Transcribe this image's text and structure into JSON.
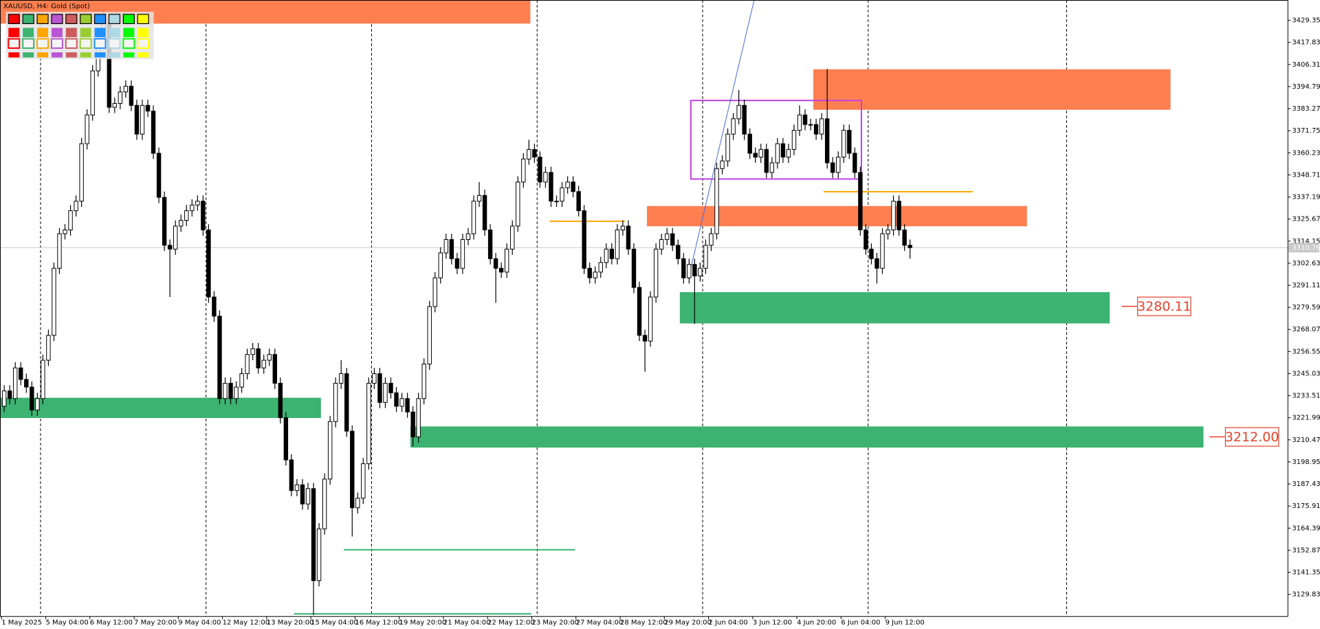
{
  "chart_data": {
    "type": "candlestick",
    "title": "XAUUSD, H4:  Gold (Spot)",
    "up_color": "#ffffff",
    "down_color": "#000000",
    "wick_color": "#000000",
    "series": [
      {
        "open": [
          3228,
          3236,
          3232,
          3248,
          3242,
          3238,
          3226,
          3232,
          3252,
          3265,
          3300,
          3318,
          3320,
          3330,
          3335,
          3365,
          3380,
          3403,
          3420,
          3428,
          3384,
          3386,
          3392,
          3395,
          3385,
          3370,
          3385,
          3382,
          3360,
          3337,
          3312,
          3310,
          3322,
          3325,
          3330,
          3333,
          3335,
          3320,
          3285,
          3275,
          3232,
          3240,
          3232,
          3238,
          3245,
          3255,
          3258,
          3248,
          3252,
          3255,
          3240,
          3222,
          3200,
          3184,
          3187,
          3177,
          3185,
          3137,
          3164,
          3190,
          3220,
          3240,
          3245,
          3215,
          3175,
          3180,
          3198,
          3240,
          3245,
          3230,
          3240,
          3235,
          3228,
          3232,
          3225,
          3212,
          3232,
          3250,
          3280,
          3295,
          3308,
          3315,
          3305,
          3300,
          3315,
          3318,
          3335,
          3338,
          3320,
          3305,
          3300,
          3298,
          3310,
          3322,
          3345,
          3357,
          3362,
          3358,
          3345,
          3350,
          3335,
          3335,
          3342,
          3345,
          3340,
          3330,
          3300,
          3295,
          3298,
          3303,
          3310,
          3305,
          3320,
          3322,
          3310,
          3290,
          3265,
          3262,
          3285,
          3310,
          3315,
          3318,
          3312,
          3305,
          3295,
          3302,
          3296,
          3300,
          3312,
          3318,
          3352,
          3356,
          3370,
          3378,
          3385,
          3370,
          3360,
          3358,
          3362,
          3350,
          3355,
          3365,
          3358,
          3362,
          3372,
          3380,
          3375,
          3375,
          3370,
          3378,
          3355,
          3350,
          3358,
          3372,
          3360,
          3350,
          3320,
          3310,
          3305,
          3300,
          3318,
          3320,
          3335,
          3320,
          3312
        ],
        "high": [
          3239,
          3239,
          3251,
          3251,
          3245,
          3241,
          3235,
          3255,
          3268,
          3303,
          3321,
          3323,
          3333,
          3338,
          3368,
          3383,
          3406,
          3423,
          3434,
          3431,
          3389,
          3395,
          3398,
          3398,
          3388,
          3388,
          3388,
          3385,
          3363,
          3340,
          3315,
          3325,
          3328,
          3333,
          3336,
          3338,
          3338,
          3323,
          3288,
          3278,
          3243,
          3243,
          3241,
          3248,
          3258,
          3261,
          3261,
          3255,
          3258,
          3258,
          3243,
          3225,
          3203,
          3190,
          3190,
          3188,
          3188,
          3167,
          3193,
          3223,
          3243,
          3252,
          3248,
          3218,
          3183,
          3201,
          3243,
          3248,
          3248,
          3243,
          3243,
          3238,
          3235,
          3235,
          3228,
          3235,
          3253,
          3283,
          3298,
          3311,
          3318,
          3318,
          3308,
          3318,
          3321,
          3338,
          3345,
          3341,
          3323,
          3308,
          3303,
          3313,
          3325,
          3348,
          3360,
          3367,
          3365,
          3361,
          3353,
          3353,
          3338,
          3345,
          3348,
          3348,
          3343,
          3333,
          3303,
          3301,
          3306,
          3313,
          3313,
          3323,
          3325,
          3325,
          3313,
          3293,
          3268,
          3288,
          3313,
          3318,
          3321,
          3321,
          3315,
          3308,
          3305,
          3305,
          3303,
          3315,
          3321,
          3355,
          3359,
          3373,
          3381,
          3393,
          3388,
          3373,
          3363,
          3365,
          3365,
          3358,
          3368,
          3368,
          3365,
          3375,
          3385,
          3383,
          3378,
          3378,
          3381,
          3404,
          3358,
          3361,
          3375,
          3375,
          3363,
          3353,
          3323,
          3313,
          3308,
          3321,
          3323,
          3338,
          3338,
          3323,
          3315
        ],
        "low": [
          3225,
          3229,
          3229,
          3239,
          3235,
          3223,
          3223,
          3229,
          3249,
          3262,
          3297,
          3315,
          3317,
          3327,
          3332,
          3362,
          3377,
          3400,
          3417,
          3381,
          3381,
          3383,
          3389,
          3382,
          3367,
          3367,
          3379,
          3357,
          3334,
          3309,
          3285,
          3307,
          3319,
          3322,
          3327,
          3330,
          3317,
          3282,
          3272,
          3229,
          3229,
          3229,
          3229,
          3235,
          3242,
          3252,
          3245,
          3245,
          3249,
          3237,
          3219,
          3197,
          3181,
          3181,
          3174,
          3174,
          3119,
          3134,
          3161,
          3187,
          3217,
          3237,
          3212,
          3160,
          3172,
          3177,
          3195,
          3237,
          3227,
          3227,
          3232,
          3225,
          3225,
          3222,
          3207,
          3209,
          3229,
          3247,
          3277,
          3292,
          3305,
          3302,
          3297,
          3297,
          3312,
          3315,
          3332,
          3317,
          3302,
          3282,
          3295,
          3295,
          3307,
          3319,
          3342,
          3354,
          3355,
          3342,
          3342,
          3332,
          3332,
          3332,
          3339,
          3337,
          3327,
          3297,
          3292,
          3292,
          3295,
          3300,
          3302,
          3302,
          3317,
          3307,
          3287,
          3262,
          3246,
          3259,
          3282,
          3307,
          3312,
          3309,
          3302,
          3292,
          3292,
          3271,
          3293,
          3297,
          3309,
          3315,
          3349,
          3353,
          3367,
          3375,
          3367,
          3357,
          3355,
          3355,
          3347,
          3347,
          3352,
          3355,
          3355,
          3359,
          3369,
          3372,
          3372,
          3367,
          3367,
          3352,
          3347,
          3347,
          3355,
          3357,
          3347,
          3317,
          3307,
          3302,
          3292,
          3297,
          3315,
          3317,
          3317,
          3309,
          3305
        ],
        "close": [
          3236,
          3232,
          3248,
          3242,
          3238,
          3226,
          3232,
          3252,
          3265,
          3300,
          3318,
          3320,
          3330,
          3335,
          3365,
          3380,
          3403,
          3420,
          3428,
          3384,
          3386,
          3392,
          3395,
          3385,
          3370,
          3385,
          3382,
          3360,
          3337,
          3312,
          3310,
          3322,
          3325,
          3330,
          3333,
          3335,
          3320,
          3285,
          3275,
          3232,
          3240,
          3232,
          3238,
          3245,
          3255,
          3258,
          3248,
          3252,
          3255,
          3240,
          3222,
          3200,
          3184,
          3187,
          3177,
          3185,
          3137,
          3164,
          3190,
          3220,
          3240,
          3245,
          3215,
          3175,
          3180,
          3198,
          3240,
          3245,
          3230,
          3240,
          3235,
          3228,
          3232,
          3225,
          3212,
          3232,
          3250,
          3280,
          3295,
          3308,
          3315,
          3305,
          3300,
          3315,
          3318,
          3335,
          3338,
          3320,
          3305,
          3300,
          3298,
          3310,
          3322,
          3345,
          3357,
          3362,
          3358,
          3345,
          3350,
          3335,
          3335,
          3342,
          3345,
          3340,
          3330,
          3300,
          3295,
          3298,
          3303,
          3310,
          3305,
          3320,
          3322,
          3310,
          3290,
          3265,
          3262,
          3285,
          3310,
          3315,
          3318,
          3312,
          3305,
          3295,
          3302,
          3296,
          3300,
          3312,
          3318,
          3352,
          3356,
          3370,
          3378,
          3385,
          3370,
          3360,
          3358,
          3362,
          3350,
          3355,
          3365,
          3358,
          3362,
          3372,
          3380,
          3375,
          3375,
          3370,
          3378,
          3355,
          3350,
          3358,
          3372,
          3360,
          3350,
          3320,
          3310,
          3305,
          3300,
          3318,
          3320,
          3335,
          3320,
          3312,
          3310.76
        ]
      }
    ],
    "ylim": [
      3118.31,
      3439.98
    ],
    "yticks": [
      3429.35,
      3417.83,
      3406.31,
      3394.79,
      3383.27,
      3371.75,
      3360.23,
      3348.71,
      3337.19,
      3325.67,
      3314.15,
      3302.63,
      3291.11,
      3279.59,
      3268.07,
      3256.55,
      3245.03,
      3233.51,
      3221.99,
      3210.47,
      3198.95,
      3187.43,
      3175.91,
      3164.39,
      3152.87,
      3141.35,
      3129.83
    ],
    "x_labels": [
      "1 May 2025",
      "5 May 04:00",
      "6 May 12:00",
      "7 May 20:00",
      "9 May 04:00",
      "12 May 12:00",
      "13 May 20:00",
      "15 May 04:00",
      "16 May 12:00",
      "19 May 20:00",
      "21 May 04:00",
      "22 May 12:00",
      "23 May 20:00",
      "27 May 04:00",
      "28 May 12:00",
      "29 May 20:00",
      "2 Jun 04:00",
      "3 Jun 12:00",
      "4 Jun 20:00",
      "6 Jun 04:00",
      "9 Jun 12:00"
    ],
    "price_label": 3310.76,
    "levels": [
      3280.11,
      {
        "value": 3212,
        "label": "3212.00"
      }
    ],
    "level_color": "#e8402a"
  }
}
